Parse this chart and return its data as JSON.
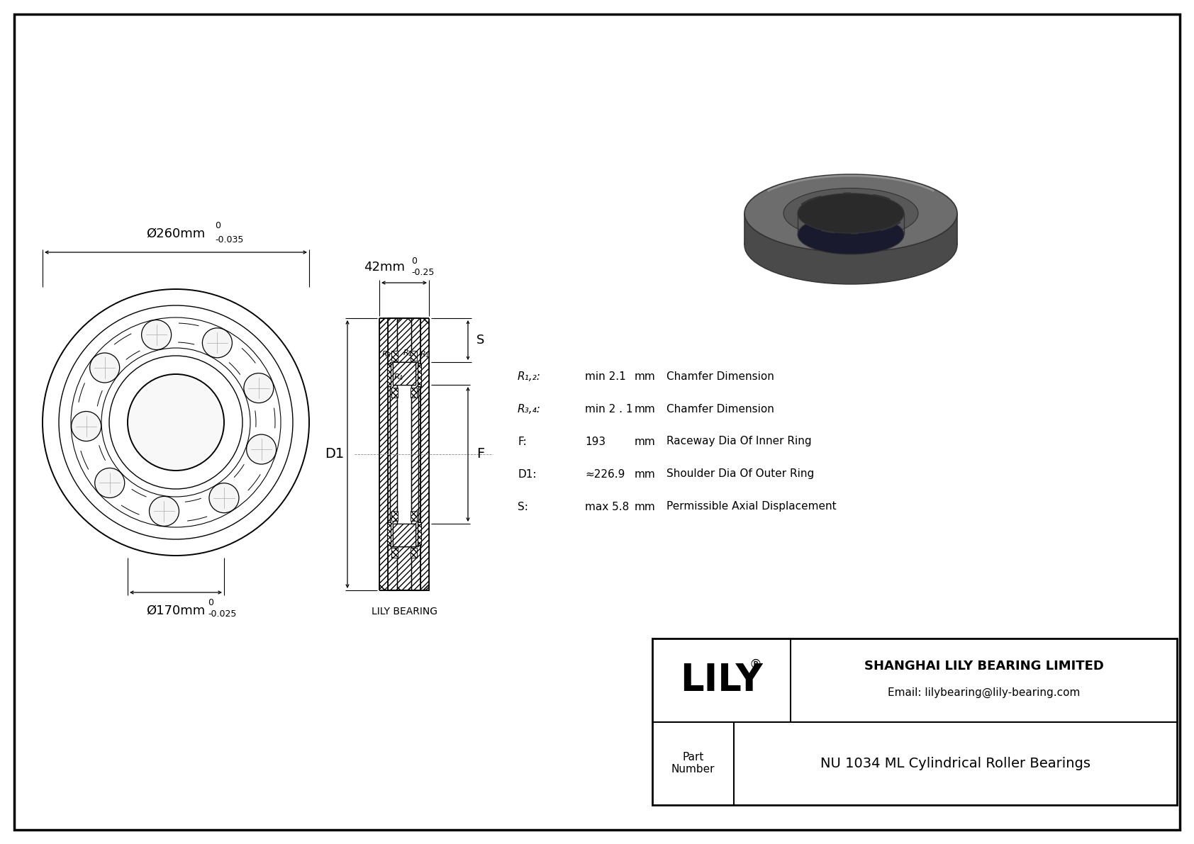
{
  "bg_color": "#ffffff",
  "title": "NU 1034 ML Cylindrical Roller Bearings",
  "company": "SHANGHAI LILY BEARING LIMITED",
  "email": "Email: lilybearing@lily-bearing.com",
  "lily_text": "LILY",
  "part_label": "Part\nNumber",
  "outer_dia_label": "Ø260mm",
  "outer_dia_tol_top": "0",
  "outer_dia_tol_bot": "-0.035",
  "inner_dia_label": "Ø170mm",
  "inner_dia_tol_top": "0",
  "inner_dia_tol_bot": "-0.025",
  "width_label": "42mm",
  "width_tol_top": "0",
  "width_tol_bot": "-0.25",
  "dim_D1": "D1",
  "dim_F": "F",
  "dim_S": "S",
  "val_R12": "min 2.1",
  "val_R34": "min 2 . 1",
  "val_F": "193",
  "val_D1": "≈226.9",
  "val_S": "max 5.8",
  "unit_mm": "mm",
  "desc_R12": "Chamfer Dimension",
  "desc_R34": "Chamfer Dimension",
  "desc_F": "Raceway Dia Of Inner Ring",
  "desc_D1": "Shoulder Dia Of Outer Ring",
  "desc_S": "Permissible Axial Displacement",
  "lily_bearing_label": "LILY BEARING",
  "gray_bearing_color": "#6d6d6d",
  "gray_dark": "#4a4a4a",
  "gray_mid": "#8a8a8a",
  "gray_light": "#aaaaaa",
  "gray_inner": "#555555"
}
